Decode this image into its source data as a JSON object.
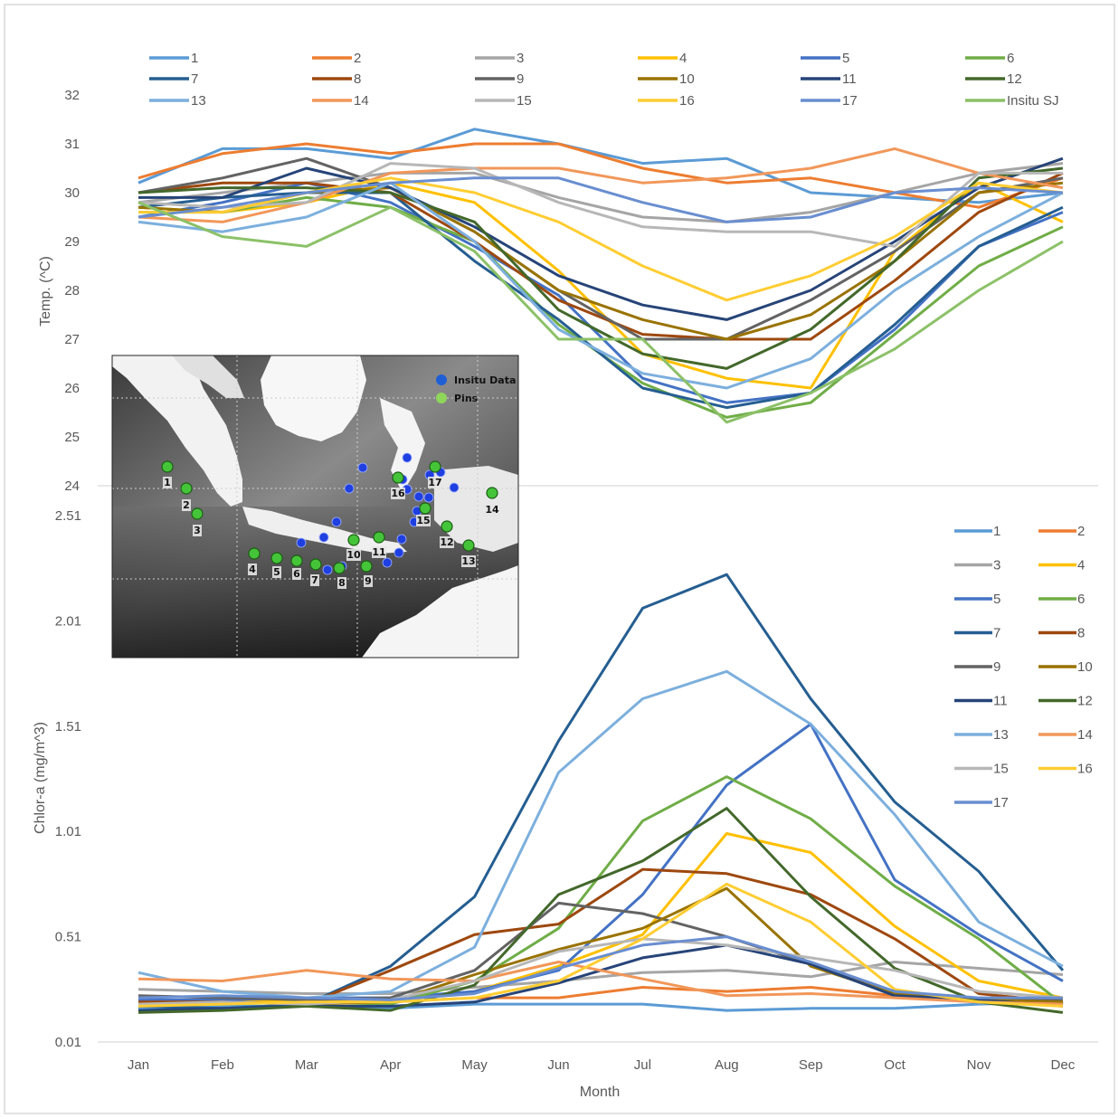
{
  "figure": {
    "inset_map": {
      "legend": [
        {
          "label": "Insitu Data",
          "color": "#1f5fd6"
        },
        {
          "label": "Pins",
          "color": "#8fd65a"
        }
      ],
      "pin_labels": [
        "1",
        "2",
        "3",
        "4",
        "5",
        "6",
        "7",
        "8",
        "9",
        "10",
        "11",
        "12",
        "13",
        "14",
        "15",
        "16",
        "17"
      ]
    }
  },
  "chart_data": [
    {
      "type": "line",
      "ylabel": "Temp. (^C)",
      "xlabel": "",
      "categories": [
        "Jan",
        "Feb",
        "Mar",
        "Apr",
        "May",
        "Jun",
        "Jul",
        "Aug",
        "Sep",
        "Oct",
        "Nov",
        "Dec"
      ],
      "ylim": [
        24,
        32
      ],
      "yticks": [
        "24",
        "25",
        "26",
        "27",
        "28",
        "29",
        "30",
        "31",
        "32"
      ],
      "legend_position": "top",
      "series": [
        {
          "name": "1",
          "color": "#5b9bd5",
          "values": [
            30.2,
            30.9,
            30.9,
            30.7,
            31.3,
            31.0,
            30.6,
            30.7,
            30.0,
            29.9,
            29.8,
            30.0
          ]
        },
        {
          "name": "2",
          "color": "#ed7d31",
          "values": [
            30.3,
            30.8,
            31.0,
            30.8,
            31.0,
            31.0,
            30.5,
            30.2,
            30.3,
            30.0,
            29.7,
            30.3
          ]
        },
        {
          "name": "3",
          "color": "#a5a5a5",
          "values": [
            29.8,
            30.0,
            30.2,
            30.4,
            30.4,
            29.9,
            29.5,
            29.4,
            29.6,
            30.0,
            30.4,
            30.6
          ]
        },
        {
          "name": "4",
          "color": "#ffc000",
          "values": [
            29.7,
            29.6,
            29.8,
            30.2,
            29.8,
            28.4,
            26.7,
            26.2,
            26.0,
            28.8,
            30.2,
            29.4
          ]
        },
        {
          "name": "5",
          "color": "#4472c4",
          "values": [
            29.5,
            29.8,
            30.2,
            29.8,
            28.9,
            27.9,
            26.2,
            25.7,
            25.9,
            27.2,
            28.9,
            29.6
          ]
        },
        {
          "name": "6",
          "color": "#70ad47",
          "values": [
            29.6,
            29.6,
            29.9,
            29.7,
            29.0,
            27.3,
            26.1,
            25.4,
            25.7,
            27.1,
            28.5,
            29.3
          ]
        },
        {
          "name": "7",
          "color": "#255e91",
          "values": [
            29.7,
            29.9,
            30.0,
            30.0,
            28.6,
            27.4,
            26.0,
            25.6,
            25.9,
            27.3,
            28.9,
            29.7
          ]
        },
        {
          "name": "8",
          "color": "#9e480e",
          "values": [
            30.0,
            30.2,
            30.2,
            30.0,
            29.0,
            27.8,
            27.1,
            27.0,
            27.0,
            28.2,
            29.6,
            30.4
          ]
        },
        {
          "name": "9",
          "color": "#636363",
          "values": [
            30.0,
            30.3,
            30.7,
            30.1,
            29.2,
            28.0,
            27.0,
            27.0,
            27.8,
            28.8,
            30.0,
            30.3
          ]
        },
        {
          "name": "10",
          "color": "#997300",
          "values": [
            29.7,
            29.6,
            30.0,
            30.1,
            29.2,
            28.0,
            27.4,
            27.0,
            27.5,
            28.6,
            30.0,
            30.2
          ]
        },
        {
          "name": "11",
          "color": "#264478",
          "values": [
            29.9,
            29.9,
            30.5,
            30.1,
            29.3,
            28.3,
            27.7,
            27.4,
            28.0,
            29.0,
            30.1,
            30.7
          ]
        },
        {
          "name": "12",
          "color": "#43682b",
          "values": [
            30.0,
            30.1,
            30.1,
            30.0,
            29.4,
            27.6,
            26.7,
            26.4,
            27.2,
            28.6,
            30.3,
            30.5
          ]
        },
        {
          "name": "13",
          "color": "#7cafdd",
          "values": [
            29.4,
            29.2,
            29.5,
            30.2,
            29.0,
            27.2,
            26.3,
            26.0,
            26.6,
            28.0,
            29.1,
            30.0
          ]
        },
        {
          "name": "14",
          "color": "#f1975a",
          "values": [
            29.5,
            29.4,
            29.8,
            30.4,
            30.5,
            30.5,
            30.2,
            30.3,
            30.5,
            30.9,
            30.4,
            30.1
          ]
        },
        {
          "name": "15",
          "color": "#b7b7b7",
          "values": [
            29.8,
            29.7,
            29.8,
            30.6,
            30.5,
            29.8,
            29.3,
            29.2,
            29.2,
            28.9,
            30.4,
            30.4
          ]
        },
        {
          "name": "16",
          "color": "#ffcd33",
          "values": [
            29.6,
            29.6,
            30.0,
            30.3,
            30.0,
            29.4,
            28.5,
            27.8,
            28.3,
            29.1,
            30.2,
            30.0
          ]
        },
        {
          "name": "17",
          "color": "#698ed0",
          "values": [
            29.5,
            29.7,
            30.0,
            30.2,
            30.3,
            30.3,
            29.8,
            29.4,
            29.5,
            30.0,
            30.1,
            30.0
          ]
        },
        {
          "name": "Insitu SJ",
          "color": "#8cc168",
          "values": [
            29.8,
            29.1,
            28.9,
            29.7,
            28.8,
            27.0,
            27.0,
            25.3,
            25.9,
            26.8,
            28.0,
            29.0
          ]
        }
      ]
    },
    {
      "type": "line",
      "ylabel": "Chlor-a (mg/m^3)",
      "xlabel": "Month",
      "categories": [
        "Jan",
        "Feb",
        "Mar",
        "Apr",
        "May",
        "Jun",
        "Jul",
        "Aug",
        "Sep",
        "Oct",
        "Nov",
        "Dec"
      ],
      "ylim": [
        0.01,
        2.51
      ],
      "yticks": [
        "0.01",
        "0.51",
        "1.01",
        "1.51",
        "2.01",
        "2.51"
      ],
      "legend_position": "right",
      "series": [
        {
          "name": "1",
          "color": "#5b9bd5",
          "values": [
            0.17,
            0.18,
            0.18,
            0.17,
            0.19,
            0.19,
            0.19,
            0.16,
            0.17,
            0.17,
            0.19,
            0.2
          ]
        },
        {
          "name": "2",
          "color": "#ed7d31",
          "values": [
            0.2,
            0.21,
            0.2,
            0.2,
            0.22,
            0.22,
            0.27,
            0.25,
            0.27,
            0.23,
            0.2,
            0.2
          ]
        },
        {
          "name": "3",
          "color": "#a5a5a5",
          "values": [
            0.26,
            0.25,
            0.24,
            0.24,
            0.27,
            0.3,
            0.34,
            0.35,
            0.32,
            0.39,
            0.36,
            0.33
          ]
        },
        {
          "name": "4",
          "color": "#ffc000",
          "values": [
            0.2,
            0.21,
            0.2,
            0.21,
            0.25,
            0.37,
            0.52,
            1.0,
            0.91,
            0.56,
            0.3,
            0.22
          ]
        },
        {
          "name": "5",
          "color": "#4472c4",
          "values": [
            0.21,
            0.21,
            0.22,
            0.22,
            0.25,
            0.35,
            0.71,
            1.23,
            1.52,
            0.78,
            0.52,
            0.3
          ]
        },
        {
          "name": "6",
          "color": "#70ad47",
          "values": [
            0.18,
            0.19,
            0.2,
            0.19,
            0.3,
            0.55,
            1.06,
            1.27,
            1.07,
            0.75,
            0.5,
            0.19
          ]
        },
        {
          "name": "7",
          "color": "#255e91",
          "values": [
            0.18,
            0.17,
            0.19,
            0.37,
            0.7,
            1.44,
            2.07,
            2.23,
            1.64,
            1.15,
            0.82,
            0.35
          ]
        },
        {
          "name": "8",
          "color": "#9e480e",
          "values": [
            0.2,
            0.2,
            0.19,
            0.35,
            0.52,
            0.57,
            0.83,
            0.81,
            0.71,
            0.5,
            0.24,
            0.2
          ]
        },
        {
          "name": "9",
          "color": "#636363",
          "values": [
            0.23,
            0.22,
            0.21,
            0.22,
            0.35,
            0.67,
            0.62,
            0.51,
            0.38,
            0.25,
            0.21,
            0.21
          ]
        },
        {
          "name": "10",
          "color": "#997300",
          "values": [
            0.19,
            0.2,
            0.19,
            0.2,
            0.33,
            0.45,
            0.55,
            0.74,
            0.37,
            0.24,
            0.21,
            0.2
          ]
        },
        {
          "name": "11",
          "color": "#264478",
          "values": [
            0.16,
            0.17,
            0.18,
            0.18,
            0.2,
            0.29,
            0.41,
            0.47,
            0.38,
            0.23,
            0.21,
            0.18
          ]
        },
        {
          "name": "12",
          "color": "#43682b",
          "values": [
            0.15,
            0.16,
            0.18,
            0.16,
            0.28,
            0.71,
            0.87,
            1.12,
            0.7,
            0.36,
            0.2,
            0.15
          ]
        },
        {
          "name": "13",
          "color": "#7cafdd",
          "values": [
            0.34,
            0.25,
            0.22,
            0.25,
            0.46,
            1.29,
            1.64,
            1.77,
            1.52,
            1.09,
            0.58,
            0.37
          ]
        },
        {
          "name": "14",
          "color": "#f1975a",
          "values": [
            0.31,
            0.3,
            0.35,
            0.31,
            0.3,
            0.39,
            0.31,
            0.23,
            0.24,
            0.22,
            0.2,
            0.19
          ]
        },
        {
          "name": "15",
          "color": "#b7b7b7",
          "values": [
            0.19,
            0.2,
            0.19,
            0.21,
            0.3,
            0.44,
            0.5,
            0.47,
            0.41,
            0.35,
            0.25,
            0.22
          ]
        },
        {
          "name": "16",
          "color": "#ffcd33",
          "values": [
            0.18,
            0.19,
            0.2,
            0.2,
            0.22,
            0.3,
            0.5,
            0.76,
            0.58,
            0.26,
            0.2,
            0.18
          ]
        },
        {
          "name": "17",
          "color": "#698ed0",
          "values": [
            0.22,
            0.23,
            0.22,
            0.21,
            0.24,
            0.36,
            0.47,
            0.51,
            0.39,
            0.25,
            0.22,
            0.22
          ]
        }
      ]
    }
  ]
}
